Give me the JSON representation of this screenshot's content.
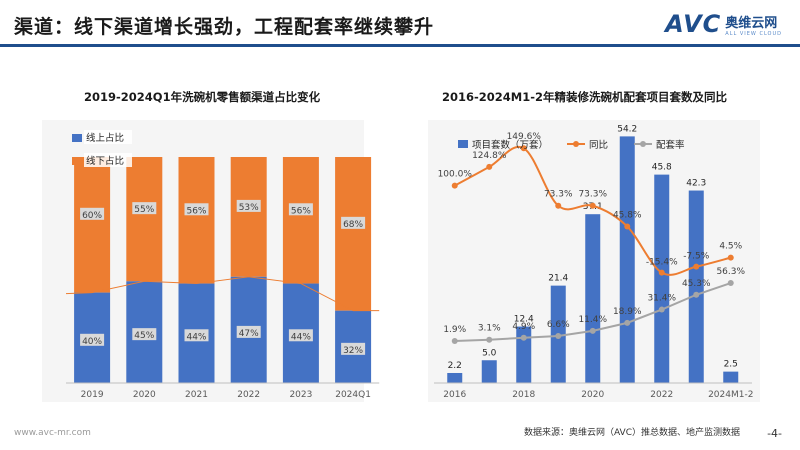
{
  "header": {
    "title": "渠道：线下渠道增长强劲，工程配套率继续攀升",
    "logo_brand": "AVC",
    "logo_cn": "奥维云网",
    "logo_en": "ALL VIEW CLOUD"
  },
  "footer": {
    "website": "www.avc-mr.com",
    "source": "数据来源：奥维云网（AVC）推总数据、地产监测数据",
    "page": "-4-"
  },
  "chart_data": [
    {
      "type": "bar",
      "stacked": true,
      "title": "2019-2024Q1年洗碗机零售额渠道占比变化",
      "categories": [
        "2019",
        "2020",
        "2021",
        "2022",
        "2023",
        "2024Q1"
      ],
      "series": [
        {
          "name": "线上占比",
          "values": [
            40,
            45,
            44,
            47,
            44,
            32
          ],
          "labels": [
            "40%",
            "45%",
            "44%",
            "47%",
            "44%",
            "32%"
          ],
          "color": "#4472c4"
        },
        {
          "name": "线下占比",
          "values": [
            60,
            55,
            56,
            53,
            56,
            68
          ],
          "labels": [
            "60%",
            "55%",
            "56%",
            "53%",
            "56%",
            "68%"
          ],
          "color": "#ed7d31"
        }
      ],
      "ylim": [
        0,
        100
      ]
    },
    {
      "type": "bar",
      "title": "2016-2024M1-2年精装修洗碗机配套项目套数及同比",
      "categories": [
        "2016",
        "2017",
        "2018",
        "2019",
        "2020",
        "2021",
        "2022",
        "2023",
        "2024M1-2"
      ],
      "x_tick_labels": [
        "2016",
        "",
        "2018",
        "",
        "2020",
        "",
        "2022",
        "",
        "2024M1-2"
      ],
      "series": [
        {
          "name": "项目套数（万套）",
          "kind": "bar",
          "color": "#4472c4",
          "values": [
            2.2,
            5.0,
            12.4,
            21.4,
            37.1,
            54.2,
            45.8,
            42.3,
            2.5
          ],
          "labels": [
            "2.2",
            "5.0",
            "12.4",
            "21.4",
            "37.1",
            "54.2",
            "45.8",
            "42.3",
            "2.5"
          ]
        },
        {
          "name": "同比",
          "kind": "line",
          "smooth": true,
          "color": "#ed7d31",
          "values": [
            100.0,
            124.8,
            149.6,
            73.3,
            73.3,
            45.8,
            -15.4,
            -7.5,
            4.5
          ],
          "labels": [
            "100.0%",
            "124.8%",
            "149.6%",
            "73.3%",
            "73.3%",
            "45.8%",
            "-15.4%",
            "-7.5%",
            "4.5%"
          ]
        },
        {
          "name": "配套率",
          "kind": "line",
          "color": "#a5a5a5",
          "values": [
            1.9,
            3.1,
            4.9,
            6.6,
            11.4,
            18.9,
            31.4,
            45.3,
            56.3
          ],
          "labels": [
            "1.9%",
            "3.1%",
            "4.9%",
            "6.6%",
            "11.4%",
            "18.9%",
            "31.4%",
            "45.3%",
            "56.3%"
          ]
        }
      ],
      "bar_ylim": [
        0,
        60
      ],
      "line_ylim": [
        -50,
        170
      ]
    }
  ]
}
